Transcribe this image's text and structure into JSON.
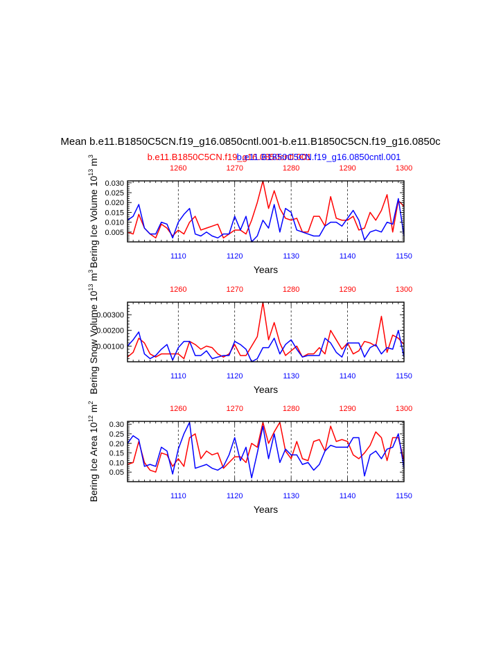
{
  "title": "Mean b.e11.B1850C5CN.f19_g16.0850cntl.001-b.e11.B1850C5CN.f19_g16.0850c",
  "legend_red": "b.e11.B1850C5CN.f19_g16.0850cntl.001",
  "legend_blue": "b.e11.B1850C5CN.f19_g16.0850cntl.001",
  "colors": {
    "red": "#ff0000",
    "blue": "#0000ff",
    "axis": "#000000"
  },
  "chart_data": [
    {
      "type": "line",
      "ylabel": "Bering Ice Volume 10",
      "ylabel_sup": "13",
      "ylabel_unit": " m",
      "ylabel_unit_sup": "3",
      "xlabel": "Years",
      "ylim": [
        0.0,
        0.031
      ],
      "yticks": [
        0.005,
        0.01,
        0.015,
        0.02,
        0.025,
        0.03
      ],
      "ytick_labels": [
        "0.005",
        "0.010",
        "0.015",
        "0.020",
        "0.025",
        "0.030"
      ],
      "x_bottom_range": [
        1101,
        1150
      ],
      "x_top_range": [
        1251,
        1300
      ],
      "x_bottom_ticks": [
        "1110",
        "1120",
        "1130",
        "1140",
        "1150"
      ],
      "x_top_ticks": [
        "1260",
        "1270",
        "1280",
        "1290",
        "1300"
      ],
      "series": [
        {
          "name": "b.e11.B1850C5CN.f19_g16.0850cntl.001 (red, years 1251-1300)",
          "color": "red",
          "x_start": 1251,
          "values": [
            0.005,
            0.004,
            0.014,
            0.007,
            0.004,
            0.002,
            0.009,
            0.007,
            0.003,
            0.006,
            0.004,
            0.01,
            0.013,
            0.006,
            0.007,
            0.008,
            0.009,
            0.002,
            0.004,
            0.006,
            0.006,
            0.004,
            0.011,
            0.02,
            0.031,
            0.017,
            0.026,
            0.017,
            0.012,
            0.011,
            0.012,
            0.005,
            0.005,
            0.013,
            0.013,
            0.008,
            0.023,
            0.012,
            0.011,
            0.011,
            0.013,
            0.006,
            0.007,
            0.015,
            0.011,
            0.016,
            0.024,
            0.005,
            0.021,
            0.018
          ]
        },
        {
          "name": "b.e11.B1850C5CN.f19_g16.0850cntl.001 (blue, years 1101-1150)",
          "color": "blue",
          "x_start": 1101,
          "values": [
            0.011,
            0.013,
            0.019,
            0.007,
            0.004,
            0.004,
            0.01,
            0.009,
            0.002,
            0.01,
            0.014,
            0.017,
            0.004,
            0.003,
            0.005,
            0.003,
            0.002,
            0.004,
            0.004,
            0.013,
            0.006,
            0.013,
            0.0,
            0.003,
            0.011,
            0.007,
            0.019,
            0.005,
            0.017,
            0.015,
            0.006,
            0.005,
            0.004,
            0.003,
            0.003,
            0.008,
            0.01,
            0.01,
            0.008,
            0.012,
            0.016,
            0.011,
            0.001,
            0.005,
            0.006,
            0.005,
            0.01,
            0.009,
            0.022,
            0.003
          ]
        }
      ]
    },
    {
      "type": "line",
      "ylabel": "Bering Snow Volume 10",
      "ylabel_sup": "13",
      "ylabel_unit": " m",
      "ylabel_unit_sup": "3",
      "xlabel": "Years",
      "ylim": [
        0.0,
        0.0038
      ],
      "yticks": [
        0.001,
        0.002,
        0.003
      ],
      "ytick_labels": [
        "0.00100",
        "0.00200",
        "0.00300"
      ],
      "x_bottom_range": [
        1101,
        1150
      ],
      "x_top_range": [
        1251,
        1300
      ],
      "x_bottom_ticks": [
        "1110",
        "1120",
        "1130",
        "1140",
        "1150"
      ],
      "x_top_ticks": [
        "1260",
        "1270",
        "1280",
        "1290",
        "1300"
      ],
      "series": [
        {
          "name": "b.e11.B1850C5CN.f19_g16.0850cntl.001 (red, years 1251-1300)",
          "color": "red",
          "x_start": 1251,
          "values": [
            0.0003,
            0.0006,
            0.0015,
            0.0012,
            0.0005,
            0.0003,
            0.0005,
            0.0005,
            0.0005,
            0.0005,
            0.0002,
            0.0013,
            0.0011,
            0.0008,
            0.001,
            0.0009,
            0.0005,
            0.0003,
            0.0005,
            0.0011,
            0.0004,
            0.0004,
            0.001,
            0.0016,
            0.0038,
            0.0014,
            0.0025,
            0.0012,
            0.0004,
            0.0007,
            0.001,
            0.0003,
            0.0005,
            0.0005,
            0.0009,
            0.0005,
            0.002,
            0.0014,
            0.0008,
            0.0012,
            0.0005,
            0.0007,
            0.0013,
            0.0012,
            0.001,
            0.0029,
            0.0006,
            0.0017,
            0.0015,
            0.0011
          ]
        },
        {
          "name": "b.e11.B1850C5CN.f19_g16.0850cntl.001 (blue, years 1101-1150)",
          "color": "blue",
          "x_start": 1101,
          "values": [
            0.001,
            0.0014,
            0.0019,
            0.0005,
            0.0002,
            0.0004,
            0.0008,
            0.0011,
            0.0001,
            0.0009,
            0.0013,
            0.0013,
            0.0004,
            0.0004,
            0.0007,
            0.0002,
            0.0003,
            0.0004,
            0.0004,
            0.0013,
            0.0011,
            0.0008,
            0.0,
            0.0002,
            0.0009,
            0.0009,
            0.0015,
            0.0005,
            0.0011,
            0.0014,
            0.0008,
            0.0003,
            0.0004,
            0.0004,
            0.0004,
            0.0015,
            0.0012,
            0.0006,
            0.0003,
            0.0012,
            0.0012,
            0.0012,
            0.0003,
            0.0009,
            0.0011,
            0.0005,
            0.0009,
            0.0008,
            0.002,
            0.0003
          ]
        }
      ]
    },
    {
      "type": "line",
      "ylabel": "Bering Ice Area 10",
      "ylabel_sup": "12",
      "ylabel_unit": " m",
      "ylabel_unit_sup": "2",
      "xlabel": "Years",
      "ylim": [
        0.0,
        0.315
      ],
      "yticks": [
        0.05,
        0.1,
        0.15,
        0.2,
        0.25,
        0.3
      ],
      "ytick_labels": [
        "0.05",
        "0.10",
        "0.15",
        "0.20",
        "0.25",
        "0.30"
      ],
      "x_bottom_range": [
        1101,
        1150
      ],
      "x_top_range": [
        1251,
        1300
      ],
      "x_bottom_ticks": [
        "1110",
        "1120",
        "1130",
        "1140",
        "1150"
      ],
      "x_top_ticks": [
        "1260",
        "1270",
        "1280",
        "1290",
        "1300"
      ],
      "series": [
        {
          "name": "b.e11.B1850C5CN.f19_g16.0850cntl.001 (red, years 1251-1300)",
          "color": "red",
          "x_start": 1251,
          "values": [
            0.09,
            0.1,
            0.21,
            0.1,
            0.06,
            0.05,
            0.15,
            0.14,
            0.08,
            0.12,
            0.08,
            0.23,
            0.25,
            0.12,
            0.16,
            0.14,
            0.15,
            0.07,
            0.1,
            0.13,
            0.13,
            0.1,
            0.2,
            0.18,
            0.31,
            0.2,
            0.26,
            0.31,
            0.16,
            0.12,
            0.21,
            0.12,
            0.11,
            0.21,
            0.22,
            0.16,
            0.29,
            0.21,
            0.22,
            0.21,
            0.14,
            0.12,
            0.15,
            0.19,
            0.26,
            0.23,
            0.11,
            0.23,
            0.23,
            0.11
          ]
        },
        {
          "name": "b.e11.B1850C5CN.f19_g16.0850cntl.001 (blue, years 1101-1150)",
          "color": "blue",
          "x_start": 1101,
          "values": [
            0.2,
            0.24,
            0.22,
            0.08,
            0.09,
            0.08,
            0.18,
            0.16,
            0.04,
            0.17,
            0.25,
            0.31,
            0.07,
            0.08,
            0.09,
            0.07,
            0.06,
            0.08,
            0.14,
            0.23,
            0.11,
            0.18,
            0.02,
            0.15,
            0.29,
            0.12,
            0.25,
            0.1,
            0.17,
            0.14,
            0.14,
            0.09,
            0.1,
            0.06,
            0.09,
            0.16,
            0.19,
            0.18,
            0.18,
            0.18,
            0.23,
            0.23,
            0.03,
            0.14,
            0.16,
            0.12,
            0.17,
            0.18,
            0.25,
            0.07
          ]
        }
      ]
    }
  ]
}
